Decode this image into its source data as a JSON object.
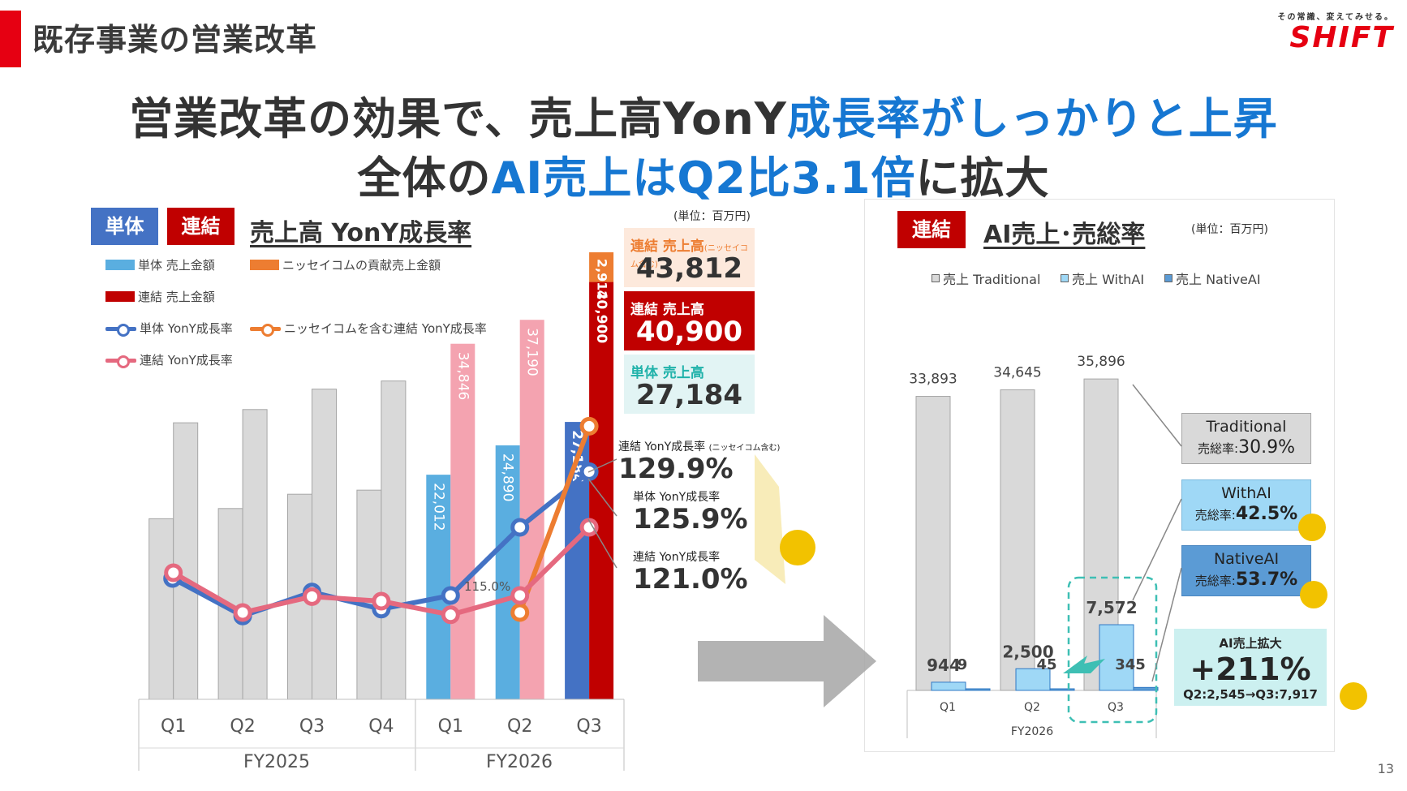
{
  "header": {
    "section_title": "既存事業の営業改革",
    "logo_tagline": "その常識、変えてみせる。",
    "logo_word": "SHIFT"
  },
  "headline": {
    "line1_a": "営業改革の効果で、売上高YonY",
    "line1_b": "成長率がしっかりと上昇",
    "line2_a": "全体の",
    "line2_b": "AI売上はQ2比3.1倍",
    "line2_c": "に拡大"
  },
  "left": {
    "badge_single": "単体",
    "badge_consolidated": "連結",
    "heading": "売上高 YonY成長率",
    "unit": "(単位：百万円)",
    "legend": {
      "single_sales": "単体 売上金額",
      "nissay_sales": "ニッセイコムの貢献売上金額",
      "consolidated_sales": "連結 売上金額",
      "single_yoy": "単体 YonY成長率",
      "nissay_yoy": "ニッセイコムを含む連結 YonY成長率",
      "consolidated_yoy": "連結 YonY成長率"
    },
    "kpi": {
      "nissay_label": "連結 売上高",
      "nissay_note": "(ニッセイコム含む)",
      "nissay_value": "43,812",
      "consolidated_label": "連結 売上高",
      "consolidated_value": "40,900",
      "single_label": "単体 売上高",
      "single_value": "27,184"
    },
    "rates": {
      "nissay_label": "連結 YonY成長率",
      "nissay_note": "(ニッセイコム含む)",
      "nissay_value": "129.9%",
      "single_label": "単体 YonY成長率",
      "single_value": "125.9%",
      "consolidated_label": "連結 YonY成長率",
      "consolidated_value": "121.0%"
    },
    "callout_label": "115.0%"
  },
  "right": {
    "badge": "連結",
    "heading": "AI売上･売総率",
    "unit": "(単位：百万円)",
    "legend": [
      "売上 Traditional",
      "売上 WithAI",
      "売上 NativeAI"
    ],
    "boxes": {
      "traditional_title": "Traditional",
      "traditional_rate_label": "売総率:",
      "traditional_rate": "30.9%",
      "withai_title": "WithAI",
      "withai_rate_label": "売総率:",
      "withai_rate": "42.5%",
      "nativeai_title": "NativeAI",
      "nativeai_rate_label": "売総率:",
      "nativeai_rate": "53.7%",
      "ai_title": "AI売上拡大",
      "ai_value": "+211%",
      "ai_sub": "Q2:2,545→Q3:7,917"
    }
  },
  "page_number": "13",
  "colors": {
    "brand_red": "#e60012",
    "accent_blue": "#1677d2",
    "single_blue": "#4472c4",
    "consolidated_red": "#c00000",
    "nissay_orange": "#ed7d31",
    "pink": "#f4a3b0",
    "consolidated_line": "#e5697f",
    "gray_bar": "#d9d9d9",
    "withai": "#9fd8f6",
    "nativeai": "#5b9bd5"
  },
  "chart_data": [
    {
      "type": "bar",
      "categories": [
        "Q1",
        "Q2",
        "Q3",
        "Q4",
        "Q1",
        "Q2",
        "Q3"
      ],
      "groups": [
        "FY2025",
        "FY2026"
      ],
      "group_sizes": [
        4,
        3
      ],
      "series": [
        {
          "name": "単体 売上金額",
          "values": [
            null,
            null,
            null,
            null,
            22012,
            24890,
            27184
          ]
        },
        {
          "name": "連結 売上金額",
          "values": [
            null,
            null,
            null,
            null,
            34846,
            37190,
            40900
          ]
        },
        {
          "name": "ニッセイコムの貢献売上金額",
          "values": [
            null,
            null,
            null,
            null,
            null,
            null,
            2912
          ]
        },
        {
          "name": "",
          "values": [
            17700,
            18700,
            20100,
            20500,
            null,
            null,
            null
          ]
        },
        {
          "name": "",
          "values": [
            27100,
            28400,
            30400,
            31200,
            null,
            null,
            null
          ]
        },
        {
          "name": "単体 YonY成長率",
          "values": [
            null,
            null,
            null,
            null,
            115.0,
            null,
            125.9
          ]
        },
        {
          "name": "ニッセイコムを含む連結 YonY成長率",
          "values": [
            null,
            null,
            null,
            null,
            null,
            null,
            129.9
          ]
        },
        {
          "name": "連結 YonY成長率",
          "values": [
            null,
            null,
            null,
            null,
            null,
            null,
            121.0
          ]
        }
      ],
      "bar_labels": [
        "22,012",
        "34,846",
        "24,890",
        "37,190",
        "27,184",
        "40,900",
        "2,912"
      ],
      "line_y_est": {
        "single": [
          116.5,
          113.2,
          115.3,
          113.8,
          115.0,
          121.0,
          125.9
        ],
        "consolidated": [
          117.0,
          113.5,
          114.9,
          114.5,
          113.3,
          115.0,
          121.0
        ],
        "nissay": [
          null,
          null,
          null,
          null,
          null,
          113.5,
          129.9
        ]
      },
      "ylim": [
        0,
        45000
      ]
    },
    {
      "type": "bar",
      "categories": [
        "Q1",
        "Q2",
        "Q3"
      ],
      "group_label": "FY2026",
      "series": [
        {
          "name": "売上 Traditional",
          "values": [
            33893,
            34645,
            35896
          ]
        },
        {
          "name": "売上 WithAI",
          "values": [
            944,
            2500,
            7572
          ]
        },
        {
          "name": "売上 NativeAI",
          "values": [
            9,
            45,
            345
          ]
        }
      ],
      "labels": {
        "traditional": [
          "33,893",
          "34,645",
          "35,896"
        ],
        "withai": [
          "944",
          "2,500",
          "7,572"
        ],
        "nativeai": [
          "9",
          "45",
          "345"
        ]
      },
      "ylim": [
        0,
        40000
      ]
    }
  ]
}
